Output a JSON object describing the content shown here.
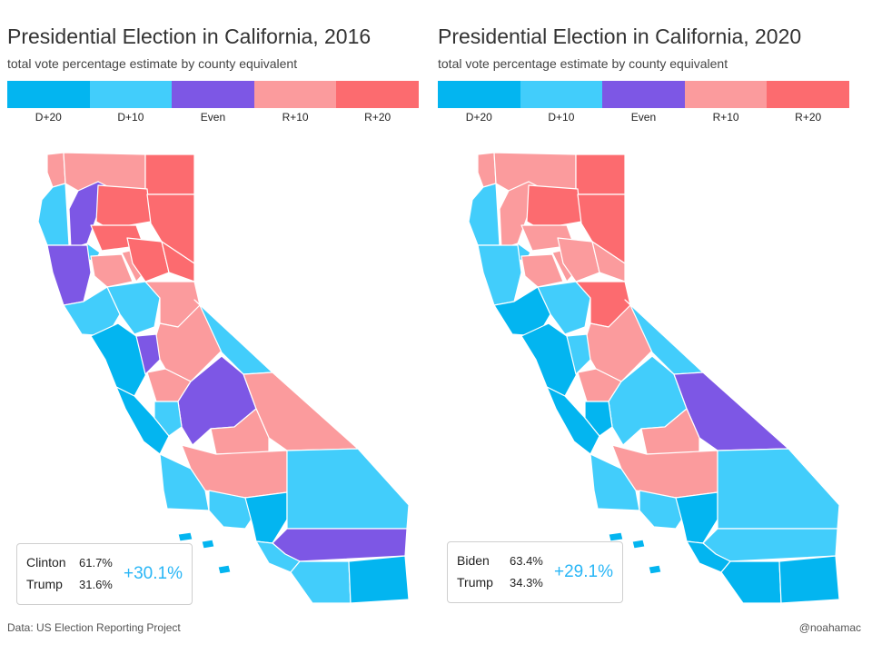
{
  "colors": {
    "d20": "#03b5f0",
    "d10": "#42cdfb",
    "even": "#7d57e5",
    "r10": "#fb9b9d",
    "r20": "#fc6b6f"
  },
  "legend": {
    "labels": [
      "D+20",
      "D+10",
      "Even",
      "R+10",
      "R+20"
    ],
    "keys": [
      "d20",
      "d10",
      "even",
      "r10",
      "r20"
    ]
  },
  "maps": [
    {
      "title": "Presidential Election in California, 2016",
      "subtitle": "total vote percentage estimate by county equivalent",
      "results": [
        {
          "candidate": "Clinton",
          "pct": "61.7%"
        },
        {
          "candidate": "Trump",
          "pct": "31.6%"
        }
      ],
      "margin": "+30.1%",
      "regions": {
        "north_coast": "d10",
        "far_north_west": "r10",
        "siskiyou": "r10",
        "modoc": "r20",
        "trinity": "even",
        "shasta": "r20",
        "lassen": "r20",
        "tehama": "r20",
        "humboldt_south": "d10",
        "mendocino": "even",
        "lake": "r10",
        "glenn": "r10",
        "butte": "r20",
        "plumas": "r20",
        "sonoma_napa": "d10",
        "bay_area": "d20",
        "yolo_sac": "d10",
        "placer": "r10",
        "foothills": "r10",
        "eastern_sierra": "d10",
        "stanislaus": "even",
        "mariposa": "r10",
        "fresno": "even",
        "inyo": "r10",
        "central_coast": "d20",
        "monterey": "d10",
        "kings_tulare": "r10",
        "kern": "r10",
        "slo_sb": "d10",
        "ventura": "d10",
        "la": "d20",
        "san_bernardino": "d10",
        "riverside": "even",
        "orange": "d10",
        "san_diego": "d10",
        "imperial": "d20",
        "channel_islands": "d20"
      }
    },
    {
      "title": "Presidential Election in California, 2020",
      "subtitle": "total vote percentage estimate by county equivalent",
      "results": [
        {
          "candidate": "Biden",
          "pct": "63.4%"
        },
        {
          "candidate": "Trump",
          "pct": "34.3%"
        }
      ],
      "margin": "+29.1%",
      "regions": {
        "north_coast": "d10",
        "far_north_west": "r10",
        "siskiyou": "r10",
        "modoc": "r20",
        "trinity": "r10",
        "shasta": "r20",
        "lassen": "r20",
        "tehama": "r10",
        "humboldt_south": "d10",
        "mendocino": "d10",
        "lake": "r10",
        "glenn": "r10",
        "butte": "r10",
        "plumas": "r10",
        "sonoma_napa": "d20",
        "bay_area": "d20",
        "yolo_sac": "d10",
        "placer": "r20",
        "foothills": "r10",
        "eastern_sierra": "d10",
        "stanislaus": "d10",
        "mariposa": "r10",
        "fresno": "d10",
        "inyo": "even",
        "central_coast": "d20",
        "monterey": "d20",
        "kings_tulare": "r10",
        "kern": "r10",
        "slo_sb": "d10",
        "ventura": "d10",
        "la": "d20",
        "san_bernardino": "d10",
        "riverside": "d10",
        "orange": "d20",
        "san_diego": "d20",
        "imperial": "d20",
        "channel_islands": "d20"
      }
    }
  ],
  "footer": {
    "source": "Data: US Election Reporting Project",
    "credit": "@noahamac"
  }
}
